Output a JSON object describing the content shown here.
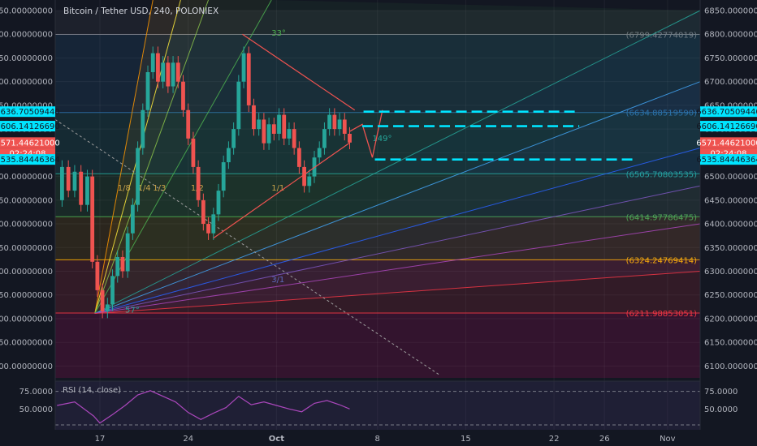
{
  "header": {
    "title": "Bitcoin / Tether USD, 240, POLONIEX"
  },
  "rsi": {
    "label": "RSI (14, close)",
    "upper": "75.0000",
    "lower": "50.0000",
    "current": "50.0000"
  },
  "x_ticks": [
    {
      "label": "17",
      "d": 17
    },
    {
      "label": "24",
      "d": 24
    },
    {
      "label": "Oct",
      "d": 31
    },
    {
      "label": "8",
      "d": 39
    },
    {
      "label": "15",
      "d": 46
    },
    {
      "label": "22",
      "d": 53
    },
    {
      "label": "26",
      "d": 57
    },
    {
      "label": "Nov",
      "d": 62
    }
  ],
  "y_ticks": [
    "6850.00000000",
    "6800.00000000",
    "6750.00000000",
    "6700.00000000",
    "6650.00000000",
    "6600.00000000",
    "6550.00000000",
    "6500.00000000",
    "6450.00000000",
    "6400.00000000",
    "6350.00000000",
    "6300.00000000",
    "6250.00000000",
    "6200.00000000",
    "6150.00000000",
    "6100.00000000"
  ],
  "y_tick_values": [
    6850,
    6800,
    6750,
    6700,
    6650,
    6600,
    6550,
    6500,
    6450,
    6400,
    6350,
    6300,
    6250,
    6200,
    6150,
    6100
  ],
  "fib_levels": [
    {
      "label": "(6799.42774019)",
      "value": 6799.42774019,
      "color": "#787b86"
    },
    {
      "label": "(6634.88519590)",
      "value": 6634.8851959,
      "color": "#2a6fa6"
    },
    {
      "label": "(6505.70803535)",
      "value": 6505.70803535,
      "color": "#26a69a"
    },
    {
      "label": "(6414.97786475)",
      "value": 6414.97786475,
      "color": "#4caf50"
    },
    {
      "label": "(6324.24769414)",
      "value": 6324.24769414,
      "color": "#ffb300"
    },
    {
      "label": "(6211.98853051)",
      "value": 6211.98853051,
      "color": "#f23645"
    }
  ],
  "price_tags": [
    {
      "label": "6636.70509440",
      "value": 6636.7050944,
      "bg": "#00e5ff",
      "fg": "#131722"
    },
    {
      "label": "6606.14126690",
      "value": 6606.1412669,
      "bg": "#00e5ff",
      "fg": "#131722"
    },
    {
      "label": "6571.44621000",
      "value": 6571.44621,
      "bg": "#ef5350",
      "fg": "#ffffff"
    },
    {
      "label": "02:24:08",
      "value": 6553,
      "bg": "#ef5350",
      "fg": "#ffffff"
    },
    {
      "label": "6535.84446364",
      "value": 6535.84446364,
      "bg": "#00e5ff",
      "fg": "#131722"
    }
  ],
  "gann": {
    "origin_label": "57°",
    "angle_labels": [
      "33°",
      "149°"
    ],
    "fan_labels": [
      "1/8",
      "1/4",
      "1/3",
      "1/2",
      "1/1"
    ],
    "fan_labels_lower": [
      "3/1"
    ]
  },
  "chart_data": {
    "type": "candlestick",
    "symbol": "Bitcoin / Tether USD",
    "interval": "240",
    "exchange": "POLONIEX",
    "x_unit": "day of period (17 = Sep 17, Oct = day 31)",
    "ylim": [
      6075,
      6870
    ],
    "xlim": [
      13.3,
      63.8
    ],
    "last_price": 6571.44621,
    "close_series": [
      [
        13.6,
        6450
      ],
      [
        14,
        6520
      ],
      [
        14.5,
        6470
      ],
      [
        15,
        6510
      ],
      [
        15.5,
        6440
      ],
      [
        16,
        6500
      ],
      [
        16.4,
        6320
      ],
      [
        16.8,
        6260
      ],
      [
        17.2,
        6215
      ],
      [
        17.6,
        6230
      ],
      [
        18,
        6290
      ],
      [
        18.4,
        6330
      ],
      [
        18.8,
        6300
      ],
      [
        19.2,
        6380
      ],
      [
        19.6,
        6440
      ],
      [
        20,
        6560
      ],
      [
        20.4,
        6640
      ],
      [
        20.8,
        6720
      ],
      [
        21.2,
        6760
      ],
      [
        21.6,
        6700
      ],
      [
        22,
        6740
      ],
      [
        22.4,
        6690
      ],
      [
        22.8,
        6740
      ],
      [
        23.2,
        6700
      ],
      [
        23.6,
        6640
      ],
      [
        24,
        6580
      ],
      [
        24.4,
        6520
      ],
      [
        24.8,
        6450
      ],
      [
        25.2,
        6400
      ],
      [
        25.6,
        6380
      ],
      [
        26,
        6420
      ],
      [
        26.4,
        6470
      ],
      [
        26.8,
        6530
      ],
      [
        27.2,
        6560
      ],
      [
        27.6,
        6600
      ],
      [
        28,
        6700
      ],
      [
        28.4,
        6760
      ],
      [
        28.8,
        6650
      ],
      [
        29.2,
        6600
      ],
      [
        29.6,
        6620
      ],
      [
        30,
        6570
      ],
      [
        30.4,
        6610
      ],
      [
        30.8,
        6590
      ],
      [
        31.2,
        6630
      ],
      [
        31.6,
        6580
      ],
      [
        32,
        6600
      ],
      [
        32.4,
        6560
      ],
      [
        32.8,
        6520
      ],
      [
        33.2,
        6480
      ],
      [
        33.6,
        6500
      ],
      [
        34,
        6540
      ],
      [
        34.4,
        6560
      ],
      [
        34.8,
        6600
      ],
      [
        35.2,
        6630
      ],
      [
        35.6,
        6600
      ],
      [
        36,
        6620
      ],
      [
        36.4,
        6590
      ],
      [
        36.8,
        6571.45
      ]
    ],
    "rsi_values": [
      [
        13.6,
        55
      ],
      [
        15,
        60
      ],
      [
        16.5,
        40
      ],
      [
        17,
        30
      ],
      [
        18,
        42
      ],
      [
        19,
        55
      ],
      [
        20,
        70
      ],
      [
        21,
        76
      ],
      [
        22,
        68
      ],
      [
        23,
        60
      ],
      [
        24,
        45
      ],
      [
        25,
        35
      ],
      [
        26,
        44
      ],
      [
        27,
        52
      ],
      [
        28,
        68
      ],
      [
        29,
        56
      ],
      [
        30,
        60
      ],
      [
        31,
        55
      ],
      [
        32,
        50
      ],
      [
        33,
        46
      ],
      [
        34,
        58
      ],
      [
        35,
        62
      ],
      [
        36,
        56
      ],
      [
        36.8,
        50
      ]
    ],
    "rsi_ylim": [
      25,
      85
    ]
  }
}
